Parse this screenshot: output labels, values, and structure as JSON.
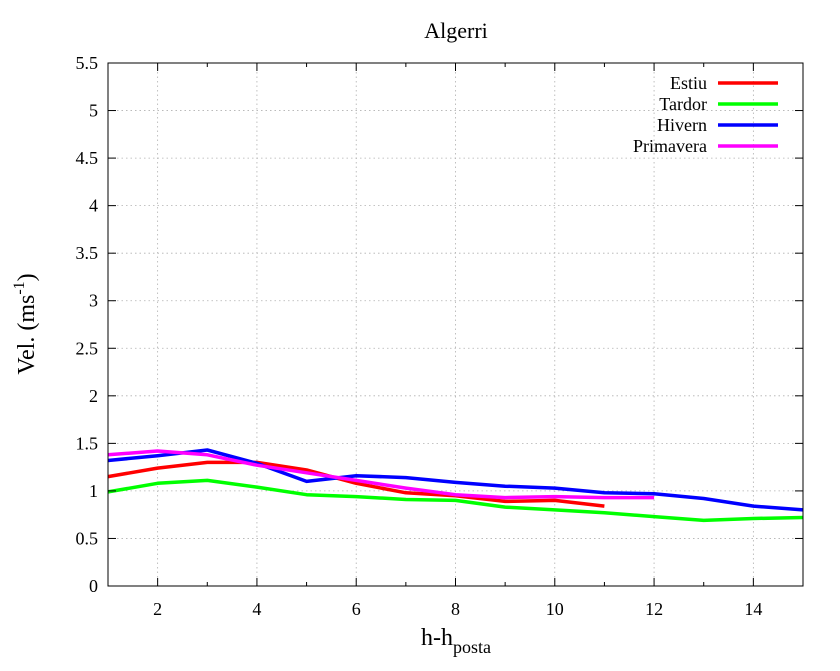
{
  "chart_data": {
    "type": "line",
    "title": "Algerri",
    "xlabel": "h-h",
    "xlabel_subscript": "posta",
    "ylabel": "Vel. (ms",
    "ylabel_superscript": "-1",
    "ylabel_suffix": ")",
    "xlim": [
      1,
      15
    ],
    "ylim": [
      0,
      5.5
    ],
    "xticks": [
      2,
      4,
      6,
      8,
      10,
      12,
      14
    ],
    "yticks": [
      0,
      0.5,
      1,
      1.5,
      2,
      2.5,
      3,
      3.5,
      4,
      4.5,
      5,
      5.5
    ],
    "grid": true,
    "legend_position": "top-right",
    "series": [
      {
        "name": "Estiu",
        "color": "#ff0000",
        "x": [
          1,
          2,
          3,
          4,
          5,
          6,
          7,
          8,
          9,
          10,
          11
        ],
        "y": [
          1.15,
          1.24,
          1.3,
          1.3,
          1.22,
          1.08,
          0.98,
          0.95,
          0.89,
          0.9,
          0.84
        ]
      },
      {
        "name": "Tardor",
        "color": "#00ff00",
        "x": [
          1,
          2,
          3,
          4,
          5,
          6,
          7,
          8,
          9,
          10,
          11,
          12,
          13,
          14,
          15
        ],
        "y": [
          0.99,
          1.08,
          1.11,
          1.04,
          0.96,
          0.94,
          0.91,
          0.9,
          0.83,
          0.8,
          0.77,
          0.73,
          0.69,
          0.71,
          0.72
        ]
      },
      {
        "name": "Hivern",
        "color": "#0000ff",
        "x": [
          1,
          2,
          3,
          4,
          5,
          6,
          7,
          8,
          9,
          10,
          11,
          12,
          13,
          14,
          15
        ],
        "y": [
          1.32,
          1.37,
          1.43,
          1.29,
          1.1,
          1.16,
          1.14,
          1.09,
          1.05,
          1.03,
          0.98,
          0.97,
          0.92,
          0.84,
          0.8
        ]
      },
      {
        "name": "Primavera",
        "color": "#ff00ff",
        "x": [
          1,
          2,
          3,
          4,
          5,
          6,
          7,
          8,
          9,
          10,
          11,
          12
        ],
        "y": [
          1.38,
          1.42,
          1.38,
          1.27,
          1.19,
          1.11,
          1.03,
          0.96,
          0.93,
          0.94,
          0.93,
          0.93
        ]
      }
    ]
  }
}
